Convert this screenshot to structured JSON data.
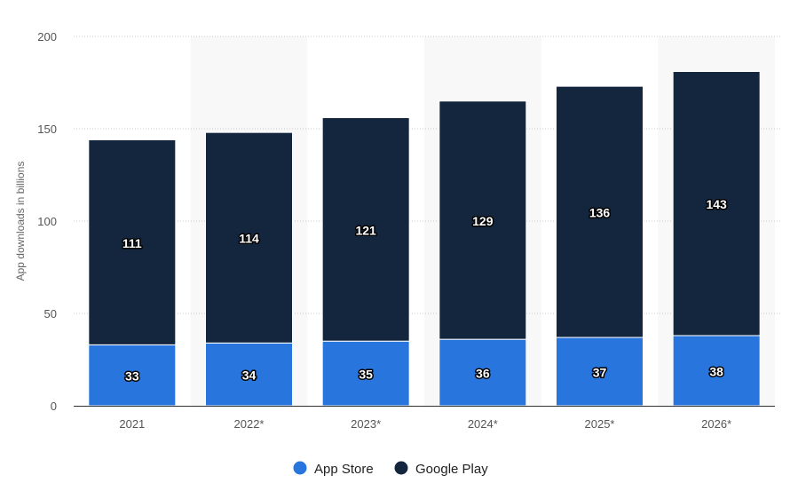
{
  "chart_data": {
    "type": "bar",
    "stacked": true,
    "categories": [
      "2021",
      "2022*",
      "2023*",
      "2024*",
      "2025*",
      "2026*"
    ],
    "series": [
      {
        "name": "App Store",
        "values": [
          33,
          34,
          35,
          36,
          37,
          38
        ],
        "color": "#2876dd"
      },
      {
        "name": "Google Play",
        "values": [
          111,
          114,
          121,
          129,
          136,
          143
        ],
        "color": "#13263e"
      }
    ],
    "ylabel": "App downloads in billions",
    "ylim": [
      0,
      200
    ],
    "yticks": [
      0,
      50,
      100,
      150,
      200
    ],
    "grid": true,
    "legend": "bottom-center",
    "alternate_band_color": "#f8f8f8"
  }
}
